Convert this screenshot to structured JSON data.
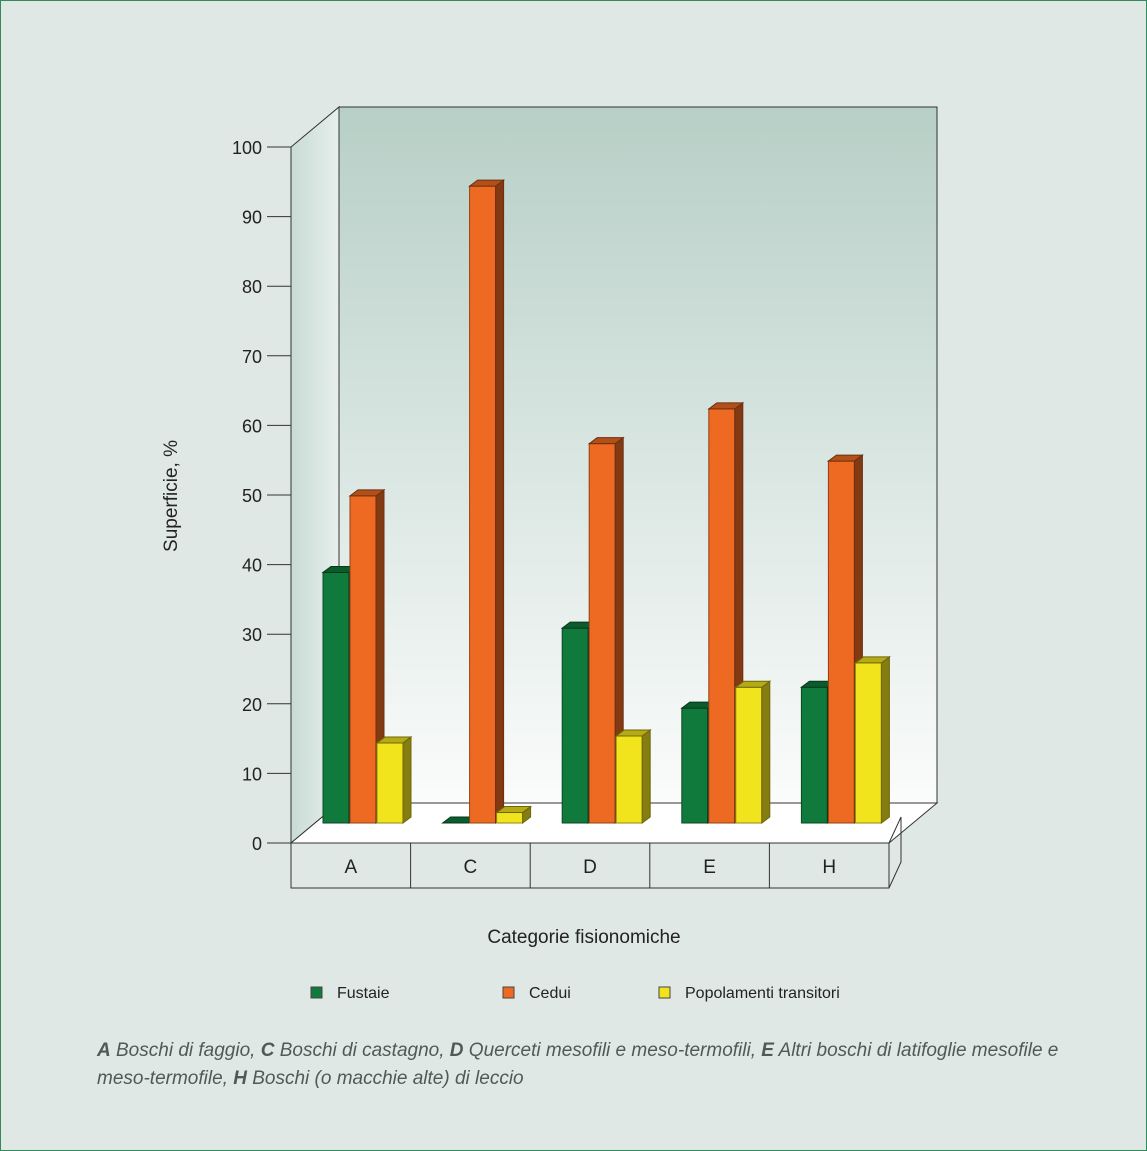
{
  "chart_data": {
    "type": "bar",
    "style": "3d-clustered",
    "categories": [
      "A",
      "C",
      "D",
      "E",
      "H"
    ],
    "series": [
      {
        "name": "Fustaie",
        "color": "#0f7a3c",
        "values": [
          36,
          0,
          28,
          16.5,
          19.5
        ]
      },
      {
        "name": "Cedui",
        "color": "#ee6a22",
        "values": [
          47,
          91.5,
          54.5,
          59.5,
          52
        ]
      },
      {
        "name": "Popolamenti transitori",
        "color": "#f2e41c",
        "values": [
          11.5,
          1.5,
          12.5,
          19.5,
          23
        ]
      }
    ],
    "ylim": [
      0,
      100
    ],
    "yticks": [
      0,
      10,
      20,
      30,
      40,
      50,
      60,
      70,
      80,
      90,
      100
    ],
    "ylabel": "Superficie, %",
    "xlabel": "Categorie fisionomiche",
    "legend_position": "bottom",
    "grid": false
  },
  "caption": [
    {
      "key": "A",
      "text": " Boschi di faggio, "
    },
    {
      "key": "C",
      "text": " Boschi di castagno, "
    },
    {
      "key": "D",
      "text": " Querceti mesofili e meso-termofili, "
    },
    {
      "key": "E",
      "text": " Altri boschi di latifoglie mesofile e meso-termofile, "
    },
    {
      "key": "H",
      "text": " Boschi (o macchie alte) di leccio"
    }
  ]
}
